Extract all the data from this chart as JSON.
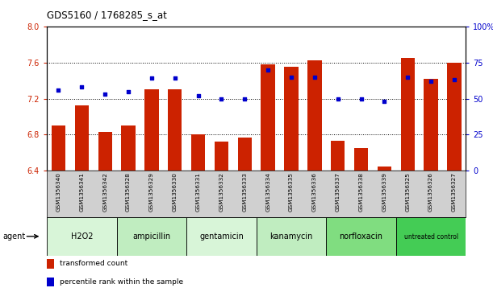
{
  "title": "GDS5160 / 1768285_s_at",
  "samples": [
    "GSM1356340",
    "GSM1356341",
    "GSM1356342",
    "GSM1356328",
    "GSM1356329",
    "GSM1356330",
    "GSM1356331",
    "GSM1356332",
    "GSM1356333",
    "GSM1356334",
    "GSM1356335",
    "GSM1356336",
    "GSM1356337",
    "GSM1356338",
    "GSM1356339",
    "GSM1356325",
    "GSM1356326",
    "GSM1356327"
  ],
  "bar_values": [
    6.9,
    7.12,
    6.83,
    6.9,
    7.3,
    7.3,
    6.8,
    6.72,
    6.77,
    7.58,
    7.55,
    7.62,
    6.73,
    6.65,
    6.45,
    7.65,
    7.42,
    7.6
  ],
  "percentile_values": [
    56,
    58,
    53,
    55,
    64,
    64,
    52,
    50,
    50,
    70,
    65,
    65,
    50,
    50,
    48,
    65,
    62,
    63
  ],
  "agents": [
    {
      "name": "H2O2",
      "start": 0,
      "end": 3,
      "color": "#d8f5d8"
    },
    {
      "name": "ampicillin",
      "start": 3,
      "end": 6,
      "color": "#c0edc0"
    },
    {
      "name": "gentamicin",
      "start": 6,
      "end": 9,
      "color": "#d8f5d8"
    },
    {
      "name": "kanamycin",
      "start": 9,
      "end": 12,
      "color": "#c0edc0"
    },
    {
      "name": "norfloxacin",
      "start": 12,
      "end": 15,
      "color": "#80dd80"
    },
    {
      "name": "untreated control",
      "start": 15,
      "end": 18,
      "color": "#44cc55"
    }
  ],
  "ylim_left": [
    6.4,
    8.0
  ],
  "ylim_right": [
    0,
    100
  ],
  "yticks_left": [
    6.4,
    6.8,
    7.2,
    7.6,
    8.0
  ],
  "yticks_right": [
    0,
    25,
    50,
    75,
    100
  ],
  "ytick_labels_right": [
    "0",
    "25",
    "50",
    "75",
    "100%"
  ],
  "bar_color": "#cc2200",
  "dot_color": "#0000cc",
  "bar_width": 0.6,
  "agent_label": "agent",
  "legend_bar_label": "transformed count",
  "legend_dot_label": "percentile rank within the sample"
}
